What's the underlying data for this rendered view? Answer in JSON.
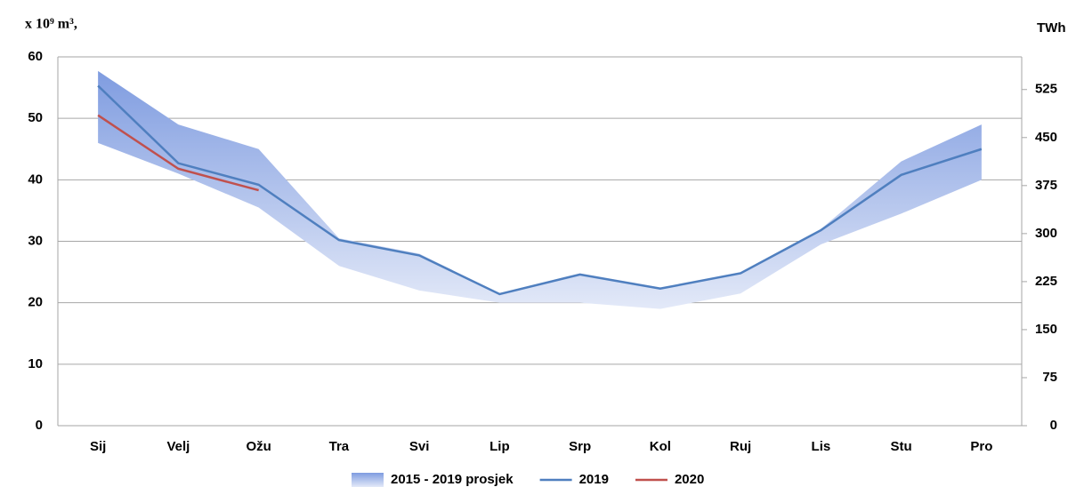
{
  "chart_data": {
    "type": "line",
    "y_label": "x 10⁹ m³,",
    "y2_label": "TWh",
    "categories": [
      "Sij",
      "Velj",
      "Ožu",
      "Tra",
      "Svi",
      "Lip",
      "Srp",
      "Kol",
      "Ruj",
      "Lis",
      "Stu",
      "Pro"
    ],
    "series": [
      {
        "name": "2015 - 2019 prosjek",
        "type": "range",
        "color": "#7f9ce0",
        "upper": [
          57.7,
          49,
          45,
          30.5,
          28,
          21.5,
          24.8,
          22.5,
          25,
          32,
          43,
          49
        ],
        "lower": [
          46,
          41,
          35.5,
          26,
          22,
          20,
          20,
          19,
          21.5,
          29.5,
          34.5,
          40
        ]
      },
      {
        "name": "2019",
        "color": "#4f7fbf",
        "values": [
          55.3,
          42.7,
          39.2,
          30.2,
          27.7,
          21.4,
          24.6,
          22.3,
          24.8,
          31.8,
          40.8,
          45
        ]
      },
      {
        "name": "2020",
        "color": "#c0504d",
        "values": [
          50.5,
          41.8,
          38.3,
          null,
          null,
          null,
          null,
          null,
          null,
          null,
          null,
          null
        ]
      }
    ],
    "ylim": [
      0,
      60
    ],
    "yticks": [
      0,
      10,
      20,
      30,
      40,
      50,
      60
    ],
    "y2lim": [
      0,
      576
    ],
    "y2ticks": [
      0,
      75,
      150,
      225,
      300,
      375,
      450,
      525
    ],
    "grid": true
  }
}
